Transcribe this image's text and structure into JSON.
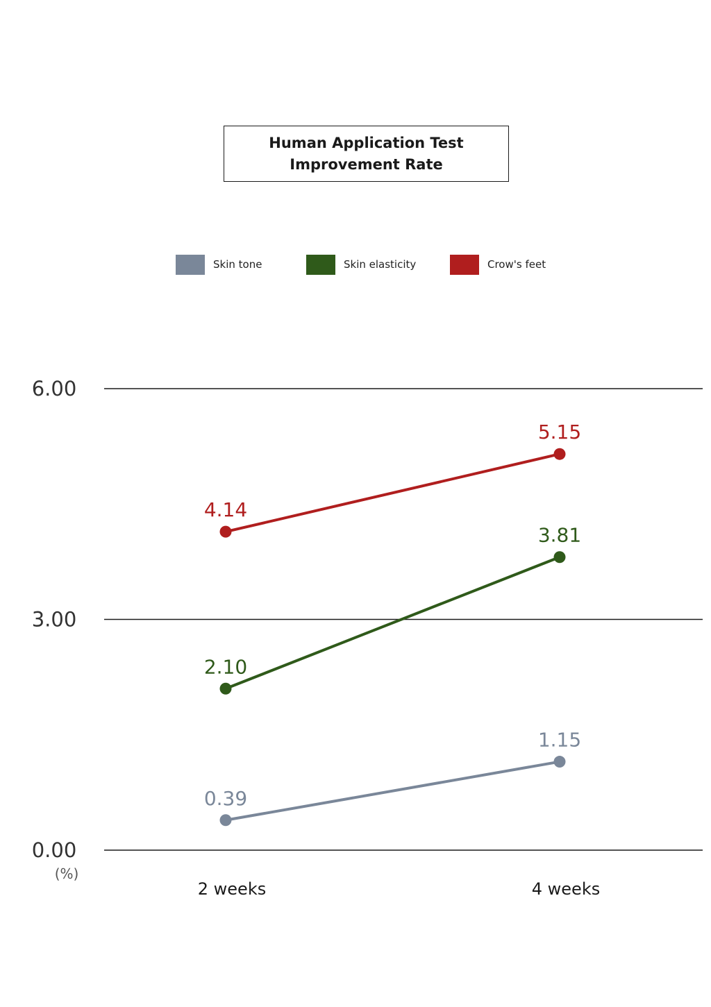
{
  "chart_data": {
    "type": "line",
    "title": [
      "Human Application Test",
      "Improvement Rate"
    ],
    "categories": [
      "2 weeks",
      "4 weeks"
    ],
    "y_unit": "(%)",
    "ylim": [
      0,
      6
    ],
    "y_ticks": [
      "0.00",
      "3.00",
      "6.00"
    ],
    "grid": true,
    "legend_position": "top",
    "series": [
      {
        "name": "Skin tone",
        "color": "#7a8799",
        "values": [
          0.39,
          1.15
        ],
        "labels": [
          "0.39",
          "1.15"
        ]
      },
      {
        "name": "Skin elasticity",
        "color": "#2f5a1a",
        "values": [
          2.1,
          3.81
        ],
        "labels": [
          "2.10",
          "3.81"
        ]
      },
      {
        "name": "Crow's feet",
        "color": "#b01e1e",
        "values": [
          4.14,
          5.15
        ],
        "labels": [
          "4.14",
          "5.15"
        ]
      }
    ]
  }
}
